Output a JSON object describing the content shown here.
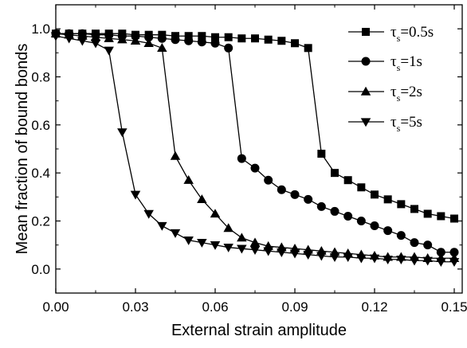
{
  "chart_data": {
    "type": "line",
    "xlabel": "External strain amplitude",
    "ylabel": "Mean fraction of bound bonds",
    "xlim": [
      0.0,
      0.153
    ],
    "ylim": [
      -0.1,
      1.1
    ],
    "x_ticks": [
      "0.00",
      "0.03",
      "0.06",
      "0.09",
      "0.12",
      "0.15"
    ],
    "y_ticks": [
      "0.0",
      "0.2",
      "0.4",
      "0.6",
      "0.8",
      "1.0"
    ],
    "legend_position": "top-right",
    "grid": false,
    "series": [
      {
        "name": "τs=0.5s",
        "legend_symbol": "τ",
        "legend_subscript": "s",
        "legend_rest": "=0.5s",
        "marker": "square",
        "x": [
          0.0,
          0.005,
          0.01,
          0.015,
          0.02,
          0.025,
          0.03,
          0.035,
          0.04,
          0.045,
          0.05,
          0.055,
          0.06,
          0.065,
          0.07,
          0.075,
          0.08,
          0.085,
          0.09,
          0.095,
          0.1,
          0.105,
          0.11,
          0.115,
          0.12,
          0.125,
          0.13,
          0.135,
          0.14,
          0.145,
          0.15
        ],
        "y": [
          0.98,
          0.98,
          0.98,
          0.98,
          0.98,
          0.98,
          0.975,
          0.975,
          0.975,
          0.97,
          0.97,
          0.97,
          0.965,
          0.965,
          0.96,
          0.96,
          0.955,
          0.95,
          0.94,
          0.92,
          0.48,
          0.4,
          0.37,
          0.34,
          0.31,
          0.29,
          0.27,
          0.25,
          0.23,
          0.22,
          0.21
        ]
      },
      {
        "name": "τs=1s",
        "legend_symbol": "τ",
        "legend_subscript": "s",
        "legend_rest": "=1s",
        "marker": "circle",
        "x": [
          0.0,
          0.005,
          0.01,
          0.015,
          0.02,
          0.025,
          0.03,
          0.035,
          0.04,
          0.045,
          0.05,
          0.055,
          0.06,
          0.065,
          0.07,
          0.075,
          0.08,
          0.085,
          0.09,
          0.095,
          0.1,
          0.105,
          0.11,
          0.115,
          0.12,
          0.125,
          0.13,
          0.135,
          0.14,
          0.145,
          0.15
        ],
        "y": [
          0.98,
          0.98,
          0.98,
          0.975,
          0.975,
          0.97,
          0.97,
          0.965,
          0.96,
          0.955,
          0.95,
          0.945,
          0.94,
          0.92,
          0.46,
          0.42,
          0.37,
          0.33,
          0.31,
          0.29,
          0.26,
          0.24,
          0.22,
          0.2,
          0.18,
          0.16,
          0.14,
          0.11,
          0.1,
          0.07,
          0.07
        ]
      },
      {
        "name": "τs=2s",
        "legend_symbol": "τ",
        "legend_subscript": "s",
        "legend_rest": "=2s",
        "marker": "triangle-up",
        "x": [
          0.0,
          0.005,
          0.01,
          0.015,
          0.02,
          0.025,
          0.03,
          0.035,
          0.04,
          0.045,
          0.05,
          0.055,
          0.06,
          0.065,
          0.07,
          0.075,
          0.08,
          0.085,
          0.09,
          0.095,
          0.1,
          0.105,
          0.11,
          0.115,
          0.12,
          0.125,
          0.13,
          0.135,
          0.14,
          0.145,
          0.15
        ],
        "y": [
          0.98,
          0.975,
          0.97,
          0.965,
          0.96,
          0.955,
          0.95,
          0.94,
          0.92,
          0.47,
          0.37,
          0.29,
          0.23,
          0.17,
          0.13,
          0.11,
          0.095,
          0.09,
          0.085,
          0.08,
          0.075,
          0.07,
          0.065,
          0.06,
          0.055,
          0.05,
          0.05,
          0.05,
          0.045,
          0.045,
          0.045
        ]
      },
      {
        "name": "τs=5s",
        "legend_symbol": "τ",
        "legend_subscript": "s",
        "legend_rest": "=5s",
        "marker": "triangle-down",
        "x": [
          0.0,
          0.005,
          0.01,
          0.015,
          0.02,
          0.025,
          0.03,
          0.035,
          0.04,
          0.045,
          0.05,
          0.055,
          0.06,
          0.065,
          0.07,
          0.075,
          0.08,
          0.085,
          0.09,
          0.095,
          0.1,
          0.105,
          0.11,
          0.115,
          0.12,
          0.125,
          0.13,
          0.135,
          0.14,
          0.145,
          0.15
        ],
        "y": [
          0.97,
          0.96,
          0.95,
          0.94,
          0.91,
          0.57,
          0.31,
          0.23,
          0.18,
          0.15,
          0.12,
          0.11,
          0.1,
          0.09,
          0.085,
          0.08,
          0.075,
          0.07,
          0.065,
          0.06,
          0.055,
          0.05,
          0.05,
          0.045,
          0.045,
          0.04,
          0.04,
          0.035,
          0.035,
          0.03,
          0.03
        ]
      }
    ]
  }
}
